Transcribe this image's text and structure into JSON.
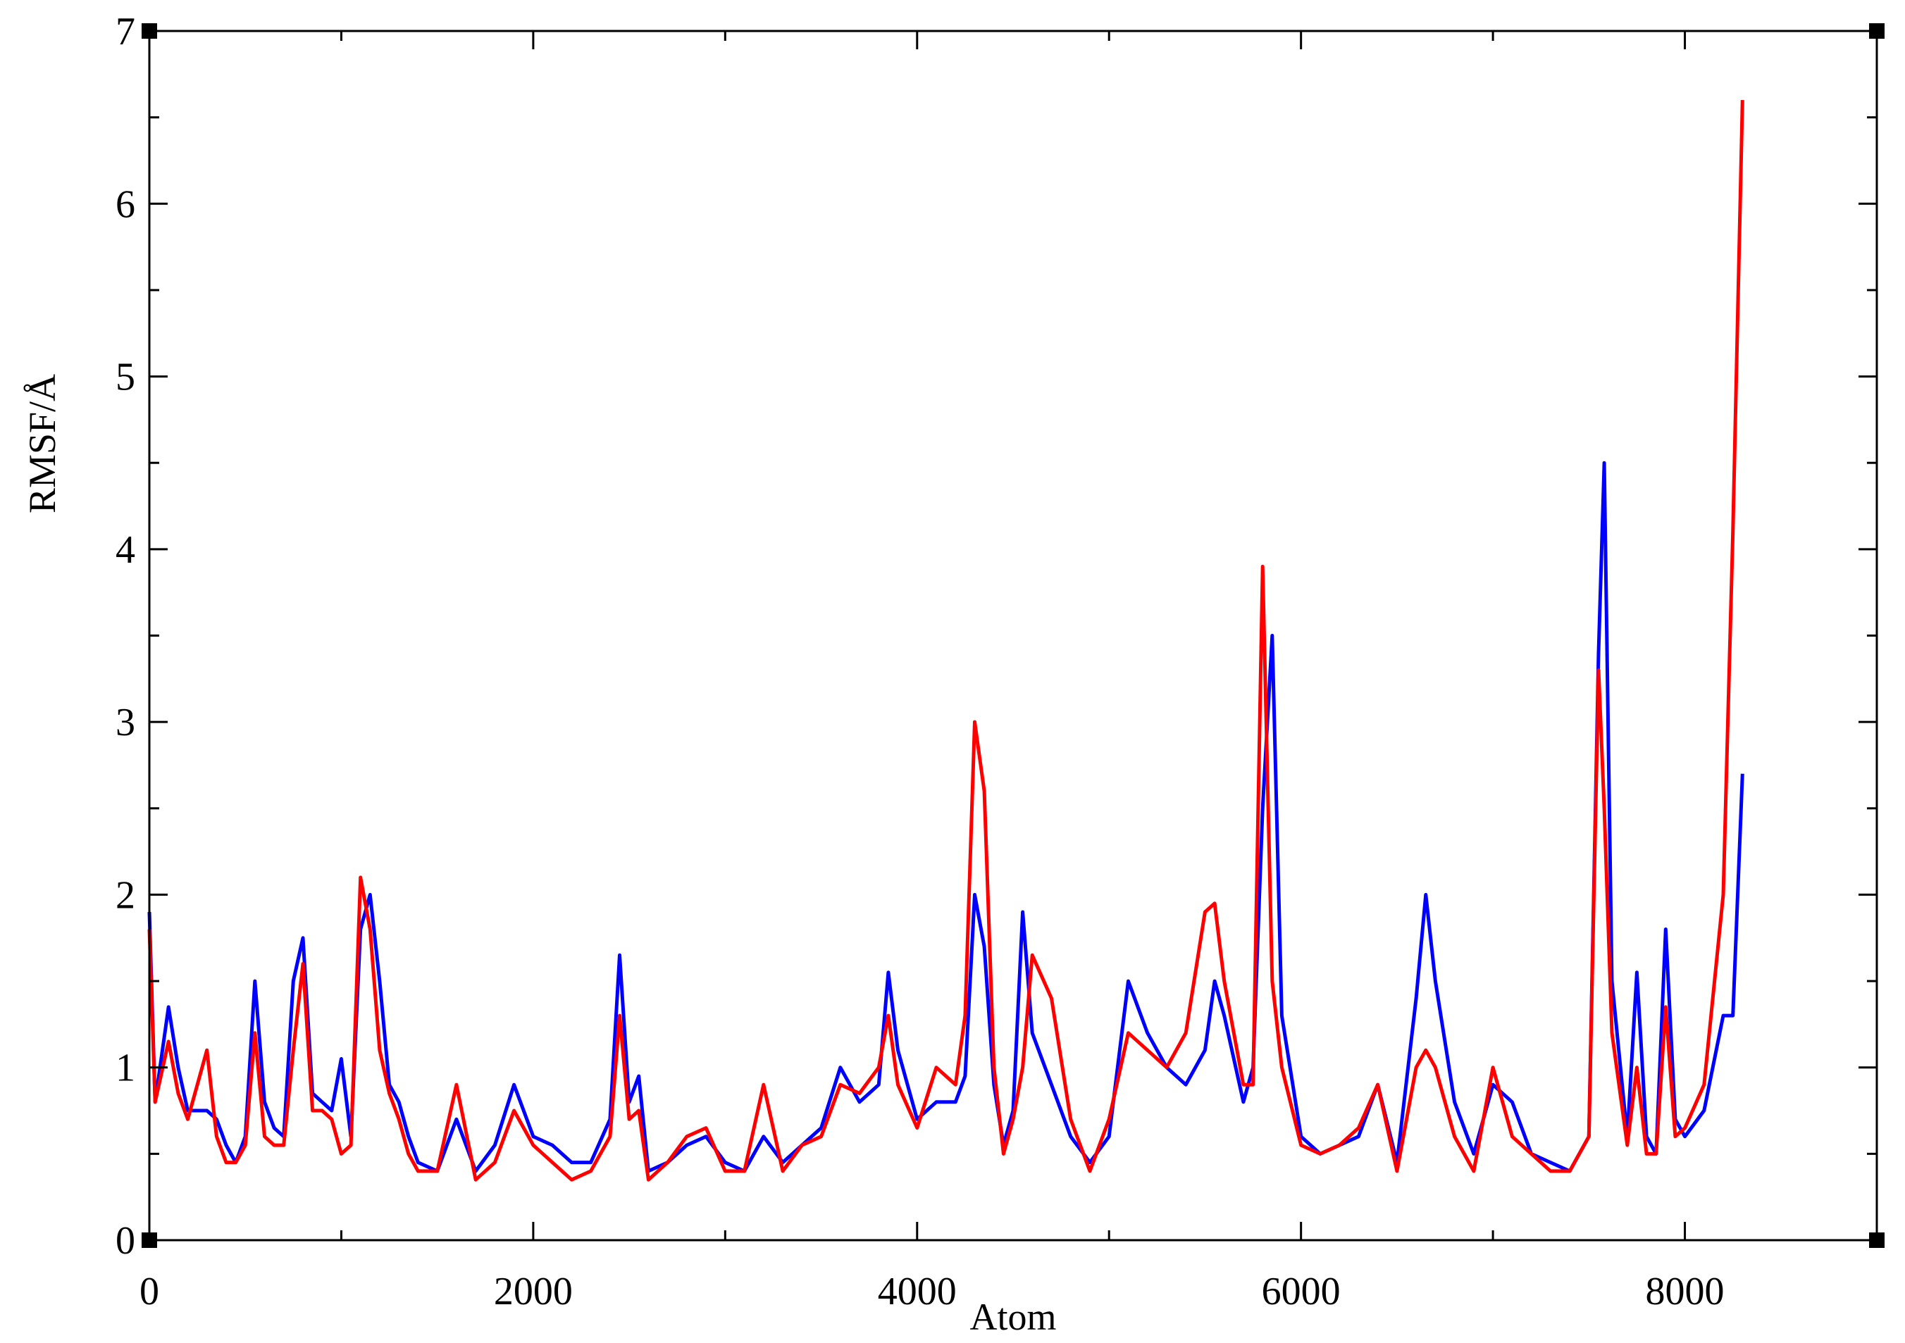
{
  "chart_data": {
    "type": "line",
    "x_label": "Atom",
    "y_label": "RMSF/Å",
    "x": [
      0,
      30,
      100,
      150,
      200,
      300,
      350,
      400,
      450,
      500,
      550,
      600,
      650,
      700,
      750,
      800,
      850,
      900,
      950,
      1000,
      1050,
      1100,
      1150,
      1200,
      1250,
      1300,
      1350,
      1400,
      1500,
      1600,
      1700,
      1800,
      1900,
      2000,
      2100,
      2200,
      2300,
      2400,
      2450,
      2500,
      2550,
      2600,
      2700,
      2800,
      2900,
      3000,
      3100,
      3200,
      3300,
      3400,
      3500,
      3600,
      3700,
      3800,
      3850,
      3900,
      4000,
      4100,
      4200,
      4250,
      4300,
      4350,
      4400,
      4450,
      4500,
      4550,
      4600,
      4700,
      4800,
      4900,
      5000,
      5100,
      5200,
      5300,
      5400,
      5500,
      5550,
      5600,
      5700,
      5750,
      5800,
      5850,
      5900,
      6000,
      6100,
      6200,
      6300,
      6400,
      6500,
      6600,
      6650,
      6700,
      6800,
      6900,
      7000,
      7100,
      7200,
      7300,
      7400,
      7500,
      7550,
      7580,
      7620,
      7700,
      7750,
      7800,
      7850,
      7900,
      7950,
      8000,
      8100,
      8200,
      8250,
      8300
    ],
    "series": [
      {
        "color": "#0000ff",
        "values": [
          1.9,
          0.8,
          1.35,
          1.0,
          0.75,
          0.75,
          0.7,
          0.55,
          0.45,
          0.6,
          1.5,
          0.8,
          0.65,
          0.6,
          1.5,
          1.75,
          0.85,
          0.8,
          0.75,
          1.05,
          0.6,
          1.8,
          2.0,
          1.5,
          0.9,
          0.8,
          0.6,
          0.45,
          0.4,
          0.7,
          0.4,
          0.55,
          0.9,
          0.6,
          0.55,
          0.45,
          0.45,
          0.7,
          1.65,
          0.8,
          0.95,
          0.4,
          0.45,
          0.55,
          0.6,
          0.45,
          0.4,
          0.6,
          0.45,
          0.55,
          0.65,
          1.0,
          0.8,
          0.9,
          1.55,
          1.1,
          0.7,
          0.8,
          0.8,
          0.95,
          2.0,
          1.7,
          0.9,
          0.55,
          0.75,
          1.9,
          1.2,
          0.9,
          0.6,
          0.45,
          0.6,
          1.5,
          1.2,
          1.0,
          0.9,
          1.1,
          1.5,
          1.3,
          0.8,
          1.0,
          2.5,
          3.5,
          1.3,
          0.6,
          0.5,
          0.55,
          0.6,
          0.9,
          0.45,
          1.4,
          2.0,
          1.5,
          0.8,
          0.5,
          0.9,
          0.8,
          0.5,
          0.45,
          0.4,
          0.6,
          3.4,
          4.5,
          1.5,
          0.6,
          1.55,
          0.6,
          0.5,
          1.8,
          0.7,
          0.6,
          0.75,
          1.3,
          1.3,
          2.7
        ]
      },
      {
        "color": "#ff0000",
        "values": [
          1.8,
          0.8,
          1.15,
          0.85,
          0.7,
          1.1,
          0.6,
          0.45,
          0.45,
          0.55,
          1.2,
          0.6,
          0.55,
          0.55,
          1.1,
          1.6,
          0.75,
          0.75,
          0.7,
          0.5,
          0.55,
          2.1,
          1.8,
          1.1,
          0.85,
          0.7,
          0.5,
          0.4,
          0.4,
          0.9,
          0.35,
          0.45,
          0.75,
          0.55,
          0.45,
          0.35,
          0.4,
          0.6,
          1.3,
          0.7,
          0.75,
          0.35,
          0.45,
          0.6,
          0.65,
          0.4,
          0.4,
          0.9,
          0.4,
          0.55,
          0.6,
          0.9,
          0.85,
          1.0,
          1.3,
          0.9,
          0.65,
          1.0,
          0.9,
          1.3,
          3.0,
          2.6,
          1.0,
          0.5,
          0.7,
          1.0,
          1.65,
          1.4,
          0.7,
          0.4,
          0.7,
          1.2,
          1.1,
          1.0,
          1.2,
          1.9,
          1.95,
          1.5,
          0.9,
          0.9,
          3.9,
          1.5,
          1.0,
          0.55,
          0.5,
          0.55,
          0.65,
          0.9,
          0.4,
          1.0,
          1.1,
          1.0,
          0.6,
          0.4,
          1.0,
          0.6,
          0.5,
          0.4,
          0.4,
          0.6,
          3.3,
          2.5,
          1.2,
          0.55,
          1.0,
          0.5,
          0.5,
          1.35,
          0.6,
          0.65,
          0.9,
          2.0,
          4.1,
          6.6
        ]
      }
    ],
    "xlim": [
      0,
      9000
    ],
    "xticks": [
      0,
      2000,
      4000,
      6000,
      8000
    ],
    "ylim": [
      0,
      7
    ],
    "yticks": [
      0,
      1,
      2,
      3,
      4,
      5,
      6,
      7
    ]
  }
}
